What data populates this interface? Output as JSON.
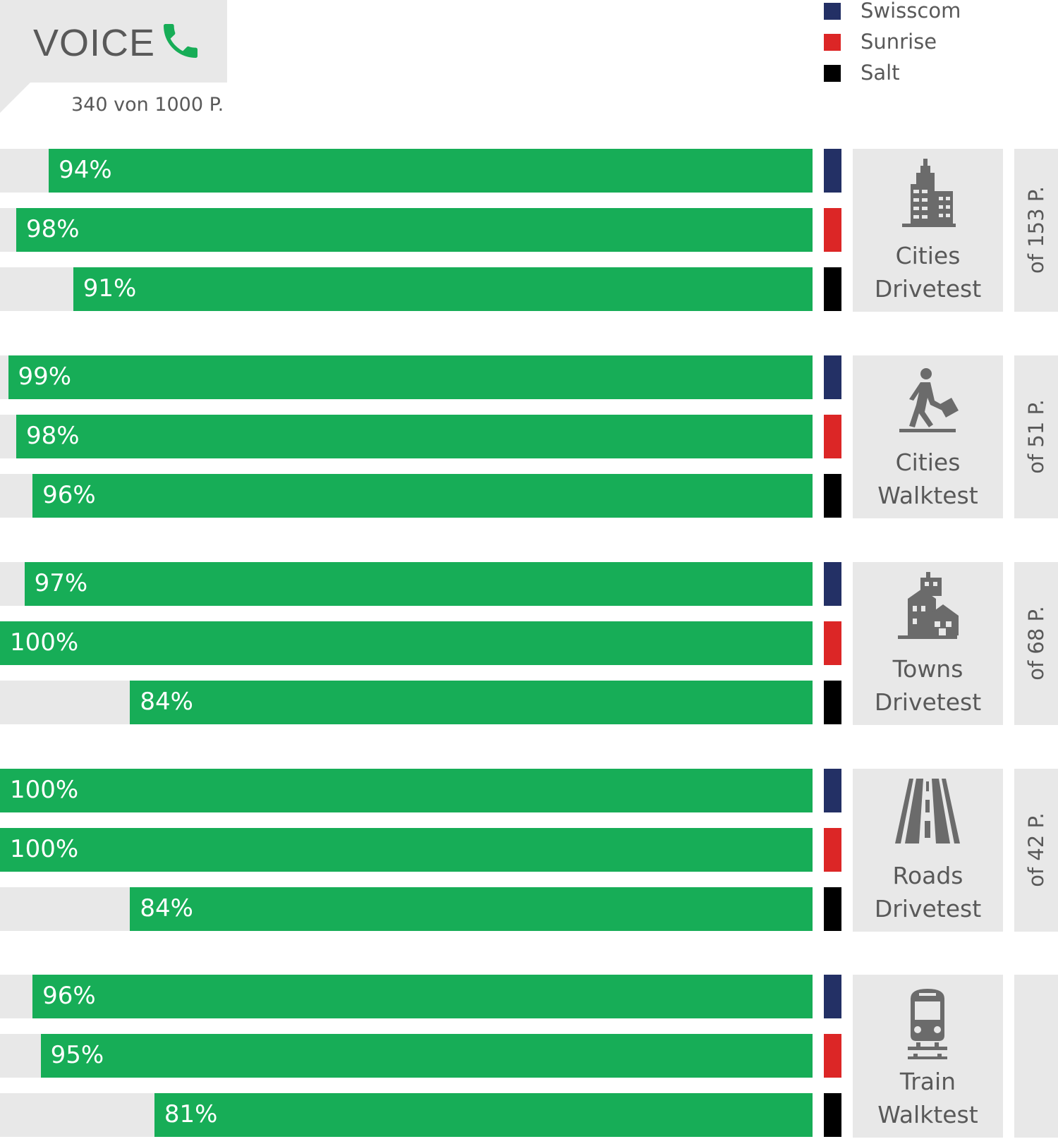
{
  "header": {
    "title": "VOICE",
    "points": "340 von 1000 P."
  },
  "colors": {
    "bar_fill": "#17ad57",
    "bar_track": "#e8e8e8",
    "operators": [
      "#233065",
      "#dc2626",
      "#000000"
    ]
  },
  "legend": [
    {
      "label": "Swisscom",
      "color": "#233065"
    },
    {
      "label": "Sunrise",
      "color": "#dc2626"
    },
    {
      "label": "Salt",
      "color": "#000000"
    }
  ],
  "chart_data": {
    "type": "bar",
    "title": "VOICE",
    "subtitle": "340 von 1000 P.",
    "orientation": "horizontal",
    "unit": "%",
    "xlim": [
      0,
      100
    ],
    "series_names": [
      "Swisscom",
      "Sunrise",
      "Salt"
    ],
    "groups": [
      {
        "line1": "Cities",
        "line2": "Drivetest",
        "icon": "city-buildings-icon",
        "points": "of 153 P.",
        "values": [
          94,
          98,
          91
        ],
        "labels": [
          "94%",
          "98%",
          "91%"
        ]
      },
      {
        "line1": "Cities",
        "line2": "Walktest",
        "icon": "walking-person-icon",
        "points": "of 51 P.",
        "values": [
          99,
          98,
          96
        ],
        "labels": [
          "99%",
          "98%",
          "96%"
        ]
      },
      {
        "line1": "Towns",
        "line2": "Drivetest",
        "icon": "town-houses-icon",
        "points": "of 68 P.",
        "values": [
          97,
          100,
          84
        ],
        "labels": [
          "97%",
          "100%",
          "84%"
        ]
      },
      {
        "line1": "Roads",
        "line2": "Drivetest",
        "icon": "road-icon",
        "points": "of 42 P.",
        "values": [
          100,
          100,
          84
        ],
        "labels": [
          "100%",
          "100%",
          "84%"
        ]
      },
      {
        "line1": "Train",
        "line2": "Walktest",
        "icon": "train-icon",
        "points": "",
        "values": [
          96,
          95,
          81
        ],
        "labels": [
          "96%",
          "95%",
          "81%"
        ]
      }
    ]
  }
}
